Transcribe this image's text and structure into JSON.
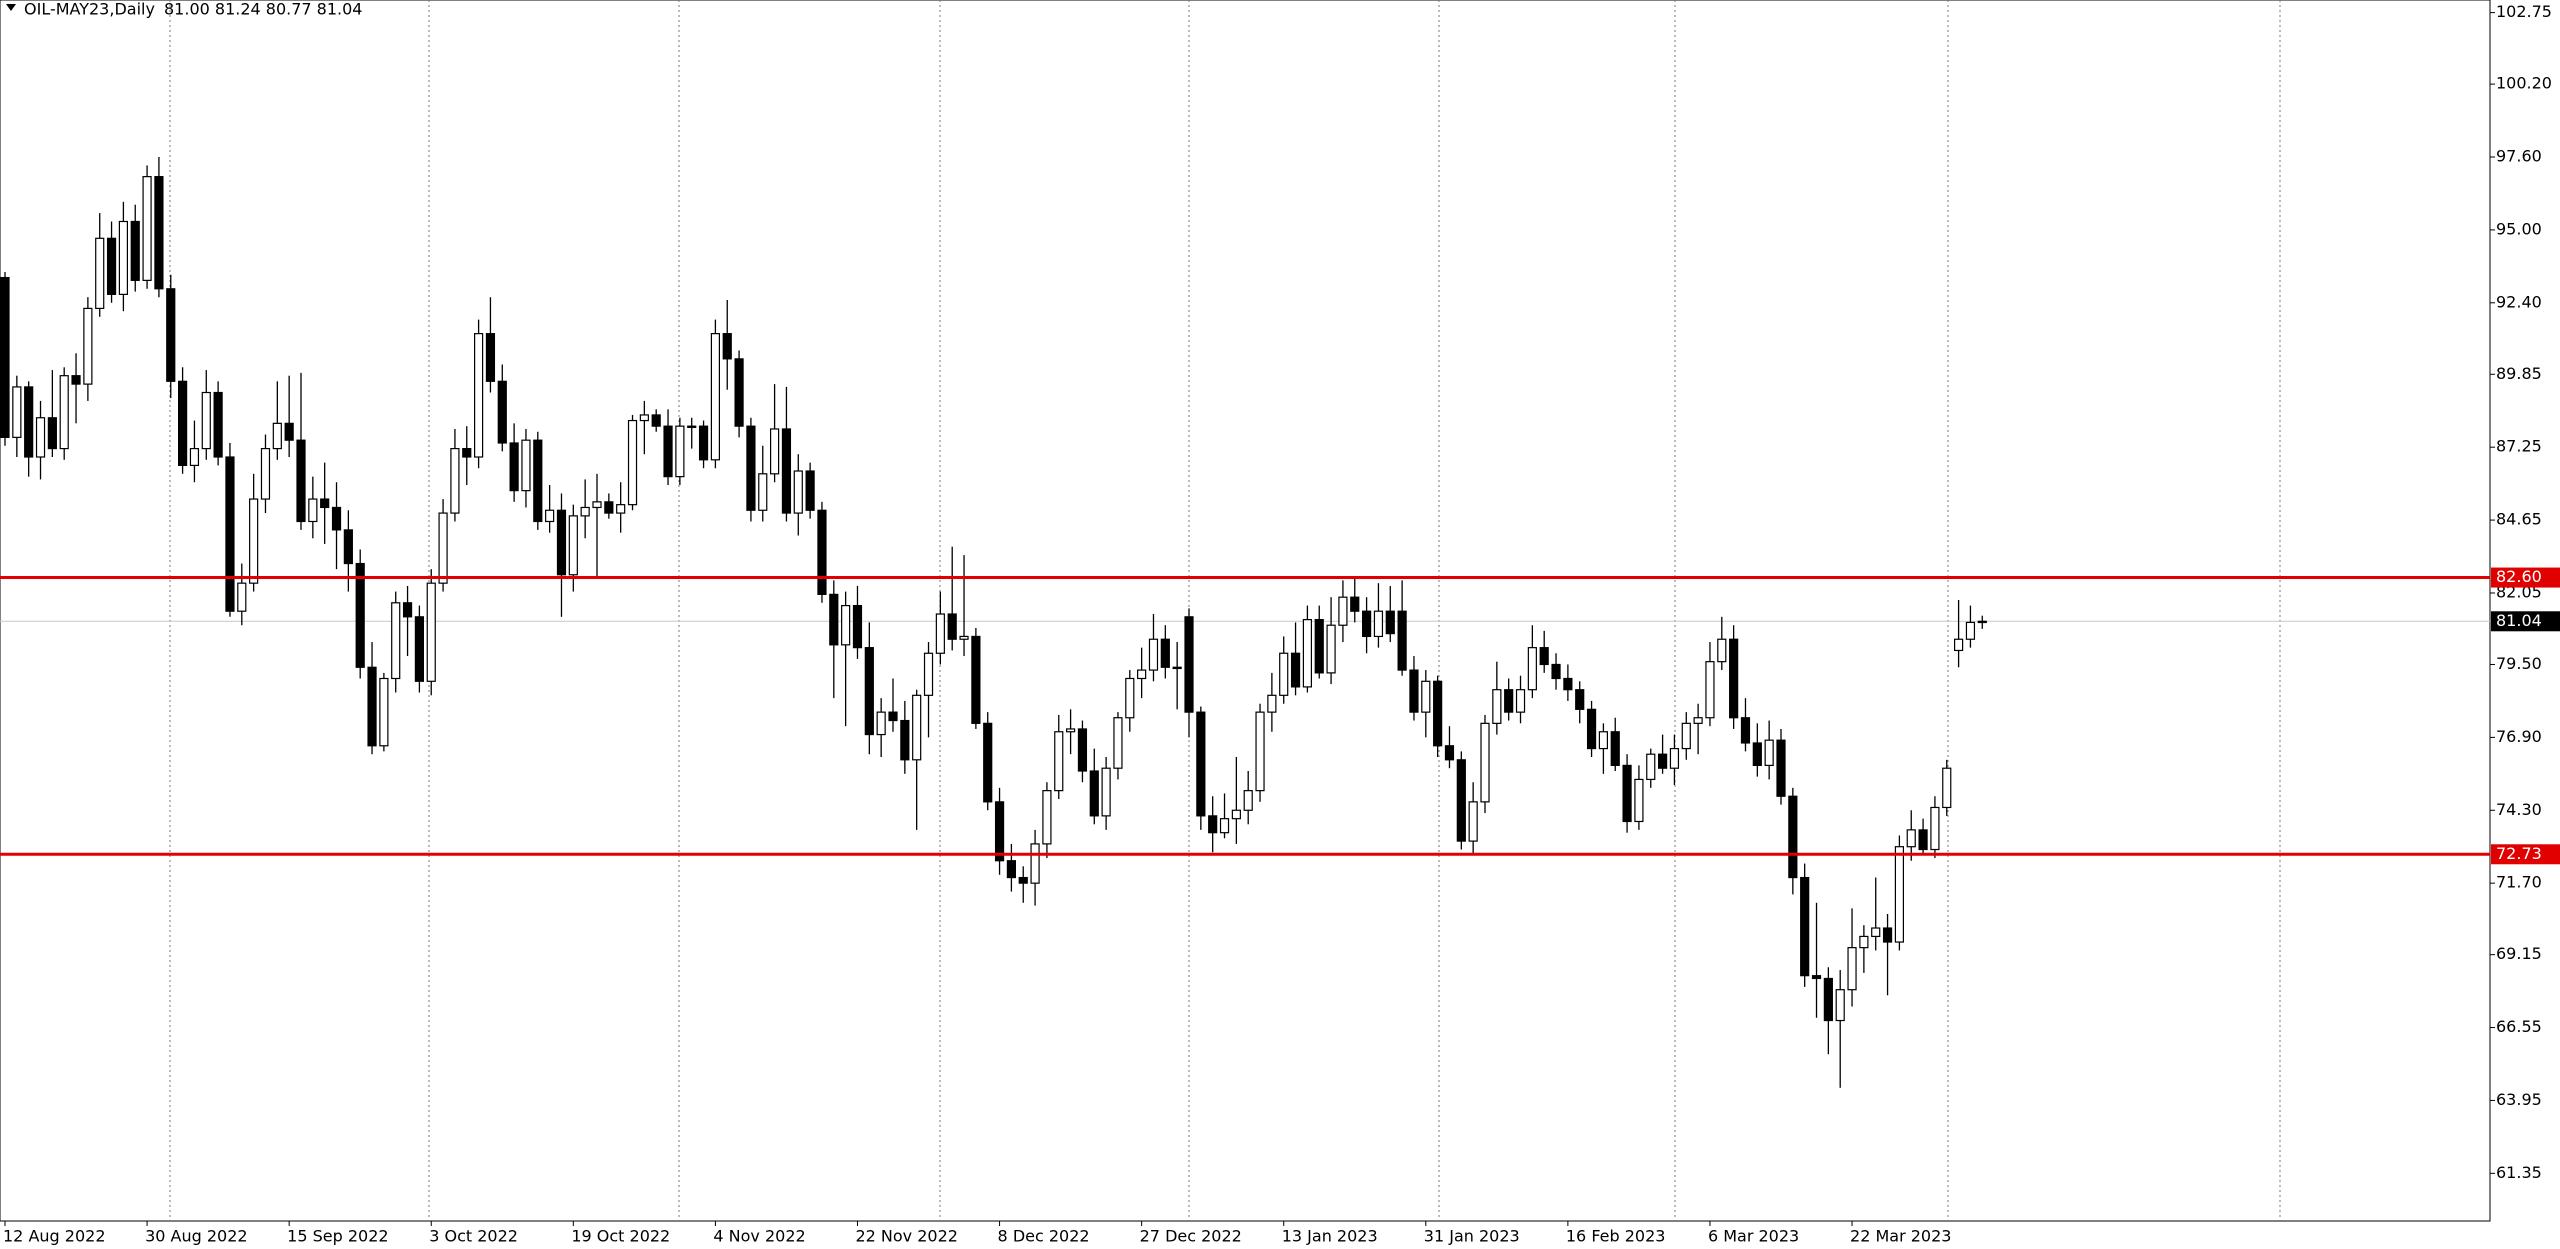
{
  "chart_data": {
    "type": "candlestick",
    "title": "OIL-MAY23,Daily",
    "ohlc_text": "81.00 81.24 80.77 81.04",
    "ylim": [
      59.65,
      103.2
    ],
    "yticks": [
      102.75,
      {
        "value": 100.2,
        "label": "100.20"
      },
      {
        "value": 97.6,
        "label": "97.60"
      },
      {
        "value": 95,
        "label": "95.00"
      },
      {
        "value": 92.4,
        "label": "92.40"
      },
      89.85,
      87.25,
      84.65,
      82.05,
      {
        "value": 79.5,
        "label": "79.50"
      },
      {
        "value": 76.9,
        "label": "76.90"
      },
      {
        "value": 74.3,
        "label": "74.30"
      },
      {
        "value": 71.7,
        "label": "71.70"
      },
      69.15,
      66.55,
      63.95,
      61.35
    ],
    "levels": [
      {
        "value": 82.6,
        "label": "82.60",
        "color": "#e00000"
      },
      {
        "value": 72.73,
        "label": "72.73",
        "color": "#e00000"
      }
    ],
    "current_price": {
      "value": 81.04,
      "label": "81.04",
      "color": "#000000"
    },
    "up_color": "#ffffff",
    "down_color": "#000000",
    "categories": [
      "12 Aug 2022",
      null,
      null,
      null,
      null,
      null,
      null,
      null,
      null,
      null,
      null,
      null,
      "30 Aug 2022",
      null,
      null,
      null,
      null,
      null,
      null,
      null,
      null,
      null,
      null,
      null,
      "15 Sep 2022",
      null,
      null,
      null,
      null,
      null,
      null,
      null,
      null,
      null,
      null,
      null,
      "3 Oct 2022",
      null,
      null,
      null,
      null,
      null,
      null,
      null,
      null,
      null,
      null,
      null,
      "19 Oct 2022",
      null,
      null,
      null,
      null,
      null,
      null,
      null,
      null,
      null,
      null,
      null,
      "4 Nov 2022",
      null,
      null,
      null,
      null,
      null,
      null,
      null,
      null,
      null,
      null,
      null,
      "22 Nov 2022",
      null,
      null,
      null,
      null,
      null,
      null,
      null,
      null,
      null,
      null,
      null,
      "8 Dec 2022",
      null,
      null,
      null,
      null,
      null,
      null,
      null,
      null,
      null,
      null,
      null,
      "27 Dec 2022",
      null,
      null,
      null,
      null,
      null,
      null,
      null,
      null,
      null,
      null,
      null,
      "13 Jan 2023",
      null,
      null,
      null,
      null,
      null,
      null,
      null,
      null,
      null,
      null,
      null,
      "31 Jan 2023",
      null,
      null,
      null,
      null,
      null,
      null,
      null,
      null,
      null,
      null,
      null,
      "16 Feb 2023",
      null,
      null,
      null,
      null,
      null,
      null,
      null,
      null,
      null,
      null,
      null,
      "6 Mar 2023",
      null,
      null,
      null,
      null,
      null,
      null,
      null,
      null,
      null,
      null,
      null,
      "22 Mar 2023",
      null,
      null,
      null,
      null,
      null,
      null,
      null,
      null,
      null,
      null,
      null
    ],
    "values": [
      [
        93.3,
        93.5,
        87.3,
        87.6
      ],
      [
        87.6,
        89.8,
        86.9,
        89.4
      ],
      [
        89.4,
        89.6,
        86.2,
        86.9
      ],
      [
        86.9,
        88.9,
        86.1,
        88.3
      ],
      [
        88.3,
        90.0,
        86.9,
        87.2
      ],
      [
        87.2,
        90.1,
        86.8,
        89.8
      ],
      [
        89.8,
        90.6,
        88.1,
        89.5
      ],
      [
        89.5,
        92.6,
        88.9,
        92.2
      ],
      [
        92.2,
        95.6,
        91.9,
        94.7
      ],
      [
        94.7,
        95.3,
        92.4,
        92.7
      ],
      [
        92.7,
        96.0,
        92.1,
        95.3
      ],
      [
        95.3,
        95.9,
        92.8,
        93.2
      ],
      [
        93.2,
        97.3,
        92.9,
        96.9
      ],
      [
        96.9,
        97.6,
        92.6,
        92.9
      ],
      [
        92.9,
        93.4,
        89.0,
        89.6
      ],
      [
        89.6,
        90.1,
        86.3,
        86.6
      ],
      [
        86.6,
        88.2,
        86.0,
        87.2
      ],
      [
        87.2,
        90.0,
        86.8,
        89.2
      ],
      [
        89.2,
        89.6,
        86.6,
        86.9
      ],
      [
        86.9,
        87.4,
        81.2,
        81.4
      ],
      [
        81.4,
        83.1,
        80.9,
        82.4
      ],
      [
        82.4,
        86.3,
        82.1,
        85.4
      ],
      [
        85.4,
        87.7,
        84.9,
        87.2
      ],
      [
        87.2,
        89.6,
        86.8,
        88.1
      ],
      [
        88.1,
        89.8,
        86.9,
        87.5
      ],
      [
        87.5,
        89.9,
        84.3,
        84.6
      ],
      [
        84.6,
        86.2,
        84.0,
        85.4
      ],
      [
        85.4,
        86.7,
        83.8,
        85.1
      ],
      [
        85.1,
        86.0,
        82.9,
        84.3
      ],
      [
        84.3,
        85.0,
        82.1,
        83.1
      ],
      [
        83.1,
        83.6,
        79.0,
        79.4
      ],
      [
        79.4,
        80.3,
        76.3,
        76.6
      ],
      [
        76.6,
        79.2,
        76.4,
        79.0
      ],
      [
        79.0,
        82.1,
        78.5,
        81.7
      ],
      [
        81.7,
        82.3,
        79.8,
        81.2
      ],
      [
        81.2,
        81.6,
        78.5,
        78.9
      ],
      [
        78.9,
        82.9,
        78.4,
        82.4
      ],
      [
        82.4,
        85.4,
        82.1,
        84.9
      ],
      [
        84.9,
        87.9,
        84.6,
        87.2
      ],
      [
        87.2,
        88.0,
        85.9,
        86.9
      ],
      [
        86.9,
        91.8,
        86.5,
        91.3
      ],
      [
        91.3,
        92.6,
        89.2,
        89.6
      ],
      [
        89.6,
        90.2,
        87.1,
        87.4
      ],
      [
        87.4,
        88.1,
        85.3,
        85.7
      ],
      [
        85.7,
        87.9,
        85.1,
        87.5
      ],
      [
        87.5,
        87.8,
        84.3,
        84.6
      ],
      [
        84.6,
        85.9,
        84.2,
        85.0
      ],
      [
        85.0,
        85.6,
        81.2,
        82.7
      ],
      [
        82.7,
        85.2,
        82.1,
        84.8
      ],
      [
        84.8,
        86.1,
        84.0,
        85.1
      ],
      [
        85.1,
        86.3,
        82.6,
        85.3
      ],
      [
        85.3,
        85.6,
        84.7,
        84.9
      ],
      [
        84.9,
        86.0,
        84.2,
        85.2
      ],
      [
        85.2,
        88.4,
        85.0,
        88.2
      ],
      [
        88.2,
        88.9,
        87.0,
        88.4
      ],
      [
        88.4,
        88.6,
        87.8,
        88.0
      ],
      [
        88.0,
        88.6,
        85.9,
        86.2
      ],
      [
        86.2,
        88.3,
        85.9,
        88.0
      ],
      [
        88.0,
        88.3,
        87.2,
        88.0
      ],
      [
        88.0,
        88.2,
        86.5,
        86.8
      ],
      [
        86.8,
        91.8,
        86.5,
        91.3
      ],
      [
        91.3,
        92.5,
        89.3,
        90.4
      ],
      [
        90.4,
        90.7,
        87.6,
        88.0
      ],
      [
        88.0,
        88.3,
        84.6,
        85.0
      ],
      [
        85.0,
        87.3,
        84.6,
        86.3
      ],
      [
        86.3,
        89.5,
        86.0,
        87.9
      ],
      [
        87.9,
        89.4,
        84.6,
        84.9
      ],
      [
        84.9,
        87.0,
        84.1,
        86.4
      ],
      [
        86.4,
        86.7,
        84.7,
        85.0
      ],
      [
        85.0,
        85.3,
        81.7,
        82.0
      ],
      [
        82.0,
        82.5,
        78.3,
        80.2
      ],
      [
        80.2,
        82.1,
        77.3,
        81.6
      ],
      [
        81.6,
        82.3,
        79.7,
        80.1
      ],
      [
        80.1,
        81.0,
        76.3,
        77.0
      ],
      [
        77.0,
        78.3,
        76.2,
        77.8
      ],
      [
        77.8,
        79.0,
        77.1,
        77.5
      ],
      [
        77.5,
        78.2,
        75.6,
        76.1
      ],
      [
        76.1,
        78.6,
        73.6,
        78.4
      ],
      [
        78.4,
        80.3,
        76.9,
        79.9
      ],
      [
        79.9,
        82.1,
        79.5,
        81.3
      ],
      [
        81.3,
        83.7,
        80.0,
        80.4
      ],
      [
        80.4,
        83.4,
        79.8,
        80.5
      ],
      [
        80.5,
        80.8,
        77.2,
        77.4
      ],
      [
        77.4,
        77.8,
        74.3,
        74.6
      ],
      [
        74.6,
        75.1,
        72.0,
        72.5
      ],
      [
        72.5,
        73.1,
        71.4,
        71.9
      ],
      [
        71.9,
        72.3,
        71.0,
        71.7
      ],
      [
        71.7,
        73.6,
        70.9,
        73.1
      ],
      [
        73.1,
        75.3,
        72.6,
        75.0
      ],
      [
        75.0,
        77.7,
        74.7,
        77.1
      ],
      [
        77.1,
        77.9,
        76.3,
        77.2
      ],
      [
        77.2,
        77.5,
        75.3,
        75.7
      ],
      [
        75.7,
        76.5,
        73.8,
        74.1
      ],
      [
        74.1,
        76.2,
        73.6,
        75.8
      ],
      [
        75.8,
        77.8,
        75.4,
        77.6
      ],
      [
        77.6,
        79.3,
        77.1,
        79.0
      ],
      [
        79.0,
        80.1,
        78.3,
        79.3
      ],
      [
        79.3,
        81.3,
        78.9,
        80.4
      ],
      [
        80.4,
        80.9,
        79.0,
        79.4
      ],
      [
        79.4,
        80.3,
        77.9,
        79.4
      ],
      [
        81.2,
        81.5,
        76.9,
        77.8
      ],
      [
        77.8,
        78.0,
        73.6,
        74.1
      ],
      [
        74.1,
        74.8,
        72.8,
        73.5
      ],
      [
        73.5,
        74.9,
        73.3,
        74.0
      ],
      [
        74.0,
        76.2,
        73.1,
        74.3
      ],
      [
        74.3,
        75.7,
        73.8,
        75.0
      ],
      [
        75.0,
        78.1,
        74.6,
        77.8
      ],
      [
        77.8,
        79.2,
        77.1,
        78.4
      ],
      [
        78.4,
        80.5,
        78.1,
        79.9
      ],
      [
        79.9,
        81.0,
        78.4,
        78.7
      ],
      [
        78.7,
        81.6,
        78.5,
        81.1
      ],
      [
        81.1,
        81.6,
        79.0,
        79.2
      ],
      [
        79.2,
        81.9,
        78.8,
        80.9
      ],
      [
        80.9,
        82.5,
        80.3,
        81.9
      ],
      [
        81.9,
        82.6,
        81.0,
        81.4
      ],
      [
        81.4,
        81.9,
        79.9,
        80.5
      ],
      [
        80.5,
        82.4,
        80.1,
        81.4
      ],
      [
        81.4,
        82.3,
        80.3,
        80.6
      ],
      [
        81.4,
        82.5,
        79.1,
        79.3
      ],
      [
        79.3,
        79.8,
        77.5,
        77.8
      ],
      [
        77.8,
        79.3,
        76.9,
        78.9
      ],
      [
        78.9,
        79.1,
        76.2,
        76.6
      ],
      [
        76.6,
        77.3,
        75.8,
        76.1
      ],
      [
        76.1,
        76.4,
        72.9,
        73.2
      ],
      [
        73.2,
        75.3,
        72.7,
        74.6
      ],
      [
        74.6,
        77.7,
        74.2,
        77.4
      ],
      [
        77.4,
        79.6,
        77.0,
        78.6
      ],
      [
        78.6,
        79.0,
        77.5,
        77.8
      ],
      [
        77.8,
        79.1,
        77.4,
        78.6
      ],
      [
        78.6,
        80.9,
        78.3,
        80.1
      ],
      [
        80.1,
        80.7,
        79.2,
        79.5
      ],
      [
        79.5,
        79.9,
        78.6,
        79.0
      ],
      [
        79.0,
        79.5,
        78.2,
        78.6
      ],
      [
        78.6,
        78.9,
        77.4,
        77.9
      ],
      [
        77.9,
        78.2,
        76.2,
        76.5
      ],
      [
        76.5,
        77.4,
        75.6,
        77.1
      ],
      [
        77.1,
        77.6,
        75.7,
        75.9
      ],
      [
        75.9,
        76.3,
        73.5,
        73.9
      ],
      [
        73.9,
        75.9,
        73.6,
        75.4
      ],
      [
        75.4,
        76.5,
        75.1,
        76.3
      ],
      [
        76.3,
        77.0,
        75.6,
        75.8
      ],
      [
        75.8,
        77.0,
        75.2,
        76.5
      ],
      [
        76.5,
        77.8,
        76.1,
        77.4
      ],
      [
        77.4,
        78.1,
        76.3,
        77.6
      ],
      [
        77.6,
        80.3,
        77.3,
        79.6
      ],
      [
        79.6,
        81.2,
        79.3,
        80.4
      ],
      [
        80.4,
        80.9,
        77.2,
        77.6
      ],
      [
        77.6,
        78.3,
        76.4,
        76.7
      ],
      [
        76.7,
        77.4,
        75.5,
        75.9
      ],
      [
        75.9,
        77.5,
        75.4,
        76.8
      ],
      [
        76.8,
        77.2,
        74.5,
        74.8
      ],
      [
        74.8,
        75.1,
        71.3,
        71.9
      ],
      [
        71.9,
        72.4,
        68.0,
        68.4
      ],
      [
        68.4,
        71.0,
        66.9,
        68.3
      ],
      [
        68.3,
        68.7,
        65.6,
        66.8
      ],
      [
        66.8,
        68.6,
        64.4,
        67.9
      ],
      [
        67.9,
        70.8,
        67.3,
        69.4
      ],
      [
        69.4,
        70.2,
        68.5,
        69.8
      ],
      [
        69.8,
        71.9,
        69.3,
        70.1
      ],
      [
        70.1,
        70.6,
        67.7,
        69.6
      ],
      [
        69.6,
        73.4,
        69.3,
        73.0
      ],
      [
        73.0,
        74.3,
        72.5,
        73.6
      ],
      [
        73.6,
        74.0,
        72.7,
        72.9
      ],
      [
        72.9,
        74.8,
        72.6,
        74.4
      ],
      [
        74.4,
        76.1,
        74.1,
        75.8
      ],
      [
        80.0,
        81.8,
        79.4,
        80.4
      ],
      [
        80.4,
        81.6,
        80.1,
        81.0
      ],
      [
        81.0,
        81.24,
        80.77,
        81.04
      ]
    ]
  }
}
